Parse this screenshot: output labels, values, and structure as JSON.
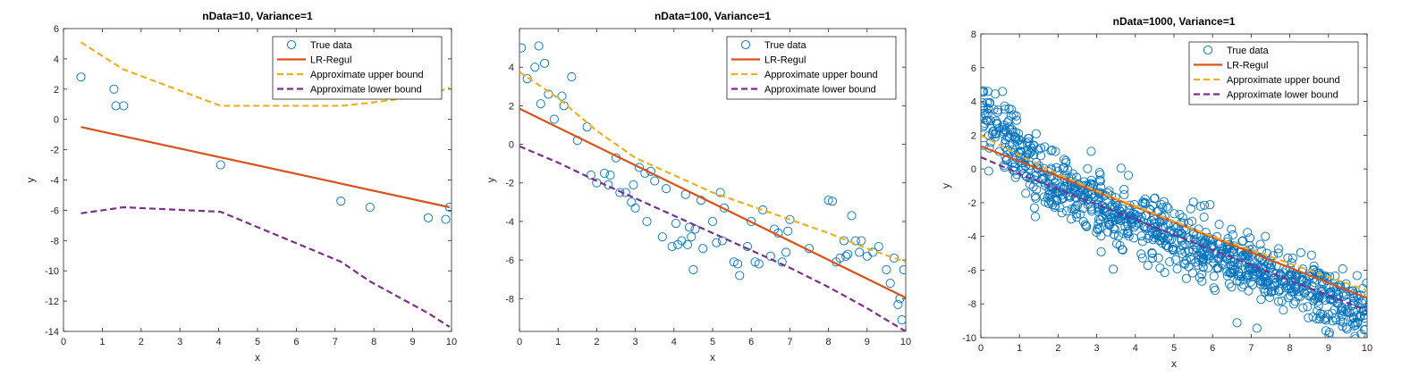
{
  "colors": {
    "data": "#0072BD",
    "fit": "#D95319",
    "upper": "#EDB120",
    "lower": "#7E2F8E",
    "axis": "#262626"
  },
  "chart_data": [
    {
      "type": "line",
      "title": "nData=10, Variance=1",
      "xlabel": "x",
      "ylabel": "y",
      "xlim": [
        0,
        10
      ],
      "ylim": [
        -14,
        6
      ],
      "xticks": [
        "0",
        "1",
        "2",
        "3",
        "4",
        "5",
        "6",
        "7",
        "8",
        "9",
        "10"
      ],
      "yticks": [
        "-14",
        "-12",
        "-10",
        "-8",
        "-6",
        "-4",
        "-2",
        "0",
        "2",
        "4",
        "6"
      ],
      "grid": false,
      "legend_position": "top-right",
      "series": [
        {
          "name": "True data",
          "kind": "scatter",
          "x": [
            0.45,
            1.3,
            1.35,
            1.55,
            4.05,
            7.15,
            7.9,
            9.4,
            9.85,
            9.95
          ],
          "y": [
            2.8,
            2.0,
            0.9,
            0.9,
            -3.0,
            -5.4,
            -5.8,
            -6.5,
            -6.6,
            -5.8
          ]
        },
        {
          "name": "LR-Regul",
          "kind": "line",
          "x": [
            0.45,
            9.95
          ],
          "y": [
            -0.5,
            -5.8
          ]
        },
        {
          "name": "Approximate upper bound",
          "kind": "dashed",
          "x": [
            0.45,
            1.3,
            1.55,
            4.05,
            7.15,
            7.9,
            9.4,
            9.95
          ],
          "y": [
            5.1,
            3.7,
            3.3,
            0.9,
            0.9,
            1.1,
            1.6,
            2.1
          ]
        },
        {
          "name": "Approximate lower bound",
          "kind": "dashed",
          "x": [
            0.45,
            1.55,
            4.05,
            7.15,
            7.9,
            9.4,
            9.95
          ],
          "y": [
            -6.2,
            -5.8,
            -6.1,
            -9.4,
            -10.7,
            -12.8,
            -13.7
          ]
        }
      ]
    },
    {
      "type": "line",
      "title": "nData=100, Variance=1",
      "xlabel": "x",
      "ylabel": "y",
      "xlim": [
        0,
        10
      ],
      "ylim": [
        -9.7,
        6
      ],
      "xticks": [
        "0",
        "1",
        "2",
        "3",
        "4",
        "5",
        "6",
        "7",
        "8",
        "9",
        "10"
      ],
      "yticks": [
        "-8",
        "-6",
        "-4",
        "-2",
        "0",
        "2",
        "4"
      ],
      "grid": false,
      "legend_position": "top-right",
      "series": [
        {
          "name": "True data",
          "kind": "scatter",
          "x": [
            0.05,
            0.2,
            0.4,
            0.5,
            0.55,
            0.65,
            0.75,
            0.9,
            1.1,
            1.15,
            1.35,
            1.5,
            1.75,
            1.85,
            2.0,
            2.2,
            2.3,
            2.35,
            2.5,
            2.6,
            2.75,
            2.9,
            2.95,
            3.0,
            3.1,
            3.25,
            3.3,
            3.4,
            3.5,
            3.7,
            3.8,
            3.95,
            4.05,
            4.1,
            4.2,
            4.3,
            4.35,
            4.4,
            4.45,
            4.5,
            4.55,
            4.7,
            4.75,
            5.0,
            5.1,
            5.2,
            5.25,
            5.3,
            5.55,
            5.65,
            5.7,
            5.9,
            6.0,
            6.1,
            6.2,
            6.3,
            6.5,
            6.6,
            6.7,
            6.8,
            6.9,
            6.95,
            7.0,
            7.5,
            8.0,
            8.1,
            8.2,
            8.3,
            8.4,
            8.45,
            8.5,
            8.6,
            8.7,
            8.8,
            8.85,
            9.0,
            9.15,
            9.3,
            9.5,
            9.6,
            9.7,
            9.8,
            9.85,
            9.9,
            9.95
          ],
          "y": [
            5.0,
            3.4,
            4.0,
            5.1,
            2.1,
            4.2,
            2.6,
            1.3,
            2.5,
            2.0,
            3.5,
            0.2,
            0.9,
            -1.6,
            -2.0,
            -1.5,
            -2.1,
            -1.6,
            -0.7,
            -2.5,
            -2.5,
            -3.0,
            -2.1,
            -3.3,
            -1.2,
            -1.5,
            -4.0,
            -1.4,
            -1.9,
            -4.8,
            -2.3,
            -5.3,
            -4.1,
            -5.2,
            -5.0,
            -2.6,
            -5.2,
            -4.3,
            -4.8,
            -6.5,
            -4.4,
            -2.9,
            -5.4,
            -4.0,
            -5.1,
            -2.5,
            -5.0,
            -3.3,
            -6.1,
            -6.2,
            -6.8,
            -5.3,
            -4.0,
            -6.1,
            -6.2,
            -3.4,
            -5.8,
            -4.4,
            -4.6,
            -6.1,
            -5.6,
            -4.5,
            -3.9,
            -5.4,
            -2.9,
            -2.95,
            -6.1,
            -5.9,
            -5.0,
            -5.8,
            -5.7,
            -3.7,
            -5.0,
            -5.6,
            -5.0,
            -5.8,
            -5.6,
            -5.3,
            -6.5,
            -7.2,
            -5.9,
            -8.3,
            -8.0,
            -9.1,
            -6.5
          ]
        },
        {
          "name": "LR-Regul",
          "kind": "line",
          "x": [
            0,
            10
          ],
          "y": [
            1.85,
            -7.95
          ]
        },
        {
          "name": "Approximate upper bound",
          "kind": "dashed",
          "x": [
            0,
            1,
            2,
            3,
            4,
            5,
            6,
            7,
            8,
            9,
            10
          ],
          "y": [
            3.75,
            2.4,
            0.7,
            -0.7,
            -1.6,
            -2.5,
            -3.2,
            -3.9,
            -4.6,
            -5.4,
            -6.1
          ]
        },
        {
          "name": "Approximate lower bound",
          "kind": "dashed",
          "x": [
            0,
            1,
            2,
            3,
            4,
            5,
            6,
            7,
            8,
            9,
            10
          ],
          "y": [
            -0.1,
            -0.95,
            -1.9,
            -2.8,
            -3.7,
            -4.6,
            -5.5,
            -6.4,
            -7.4,
            -8.5,
            -9.7
          ]
        }
      ]
    },
    {
      "type": "line",
      "title": "nData=1000, Variance=1",
      "xlabel": "x",
      "ylabel": "y",
      "xlim": [
        0,
        10
      ],
      "ylim": [
        -10,
        8
      ],
      "xticks": [
        "0",
        "1",
        "2",
        "3",
        "4",
        "5",
        "6",
        "7",
        "8",
        "9",
        "10"
      ],
      "yticks": [
        "-10",
        "-8",
        "-6",
        "-4",
        "-2",
        "0",
        "2",
        "4",
        "6",
        "8"
      ],
      "grid": false,
      "legend_position": "top-right",
      "series": [
        {
          "name": "True data",
          "kind": "scatter",
          "n": 1000,
          "trend_x": [
            0,
            10
          ],
          "trend_y": [
            1.35,
            -7.65
          ],
          "noise_sd": 1.0
        },
        {
          "name": "LR-Regul",
          "kind": "line",
          "x": [
            0,
            10
          ],
          "y": [
            1.35,
            -7.65
          ]
        },
        {
          "name": "Approximate upper bound",
          "kind": "dashed",
          "x": [
            0,
            1,
            2,
            3,
            4,
            5,
            6,
            7,
            8,
            9,
            10
          ],
          "y": [
            2.0,
            0.8,
            -0.3,
            -1.3,
            -2.2,
            -3.1,
            -4.0,
            -4.8,
            -5.6,
            -6.4,
            -7.2
          ]
        },
        {
          "name": "Approximate lower bound",
          "kind": "dashed",
          "x": [
            0,
            1,
            2,
            3,
            4,
            5,
            6,
            7,
            8,
            9,
            10
          ],
          "y": [
            0.7,
            -0.3,
            -1.2,
            -2.1,
            -3.0,
            -3.9,
            -4.8,
            -5.7,
            -6.6,
            -7.5,
            -8.4
          ]
        }
      ]
    }
  ]
}
